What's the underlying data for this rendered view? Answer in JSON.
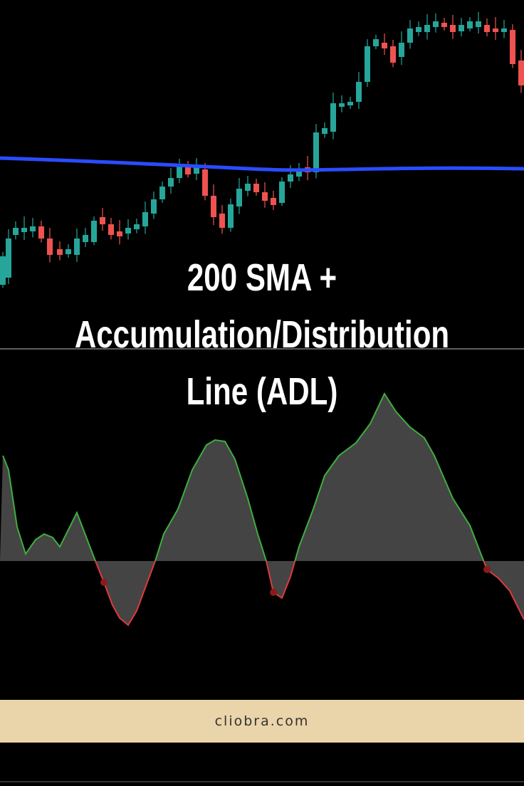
{
  "title": {
    "lines": [
      "200 SMA +",
      "Accumulation/Distribution",
      "Line (ADL)"
    ]
  },
  "footer": {
    "text": "cliobra.com"
  }
}
